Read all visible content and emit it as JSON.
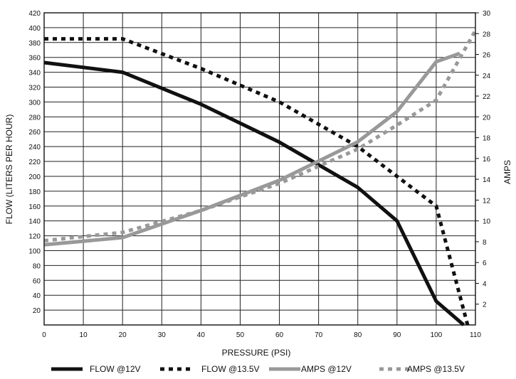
{
  "chart_data": {
    "type": "line",
    "xlabel": "PRESSURE (PSI)",
    "ylabel": "FLOW (LITERS PER HOUR)",
    "y2label": "AMPS",
    "xlim": [
      0,
      110
    ],
    "ylim": [
      0,
      420
    ],
    "y2lim": [
      0,
      30
    ],
    "x_ticks": [
      0,
      10,
      20,
      30,
      40,
      50,
      60,
      70,
      80,
      90,
      100,
      110
    ],
    "y_ticks": [
      20,
      40,
      60,
      80,
      100,
      120,
      140,
      160,
      180,
      200,
      220,
      240,
      260,
      280,
      300,
      320,
      340,
      360,
      380,
      400,
      420
    ],
    "y2_ticks": [
      2,
      4,
      6,
      8,
      10,
      12,
      14,
      16,
      18,
      20,
      22,
      24,
      26,
      28,
      30
    ],
    "grid": true,
    "legend_position": "bottom",
    "series": [
      {
        "name": "FLOW @12V",
        "axis": "left",
        "color": "#111111",
        "style": "solid",
        "points": [
          [
            0,
            353
          ],
          [
            20,
            340
          ],
          [
            40,
            297
          ],
          [
            60,
            246
          ],
          [
            80,
            185
          ],
          [
            90,
            140
          ],
          [
            100,
            32
          ],
          [
            107,
            0
          ]
        ]
      },
      {
        "name": "FLOW @13.5V",
        "axis": "left",
        "color": "#111111",
        "style": "dotted",
        "points": [
          [
            0,
            385
          ],
          [
            20,
            385
          ],
          [
            40,
            345
          ],
          [
            60,
            300
          ],
          [
            80,
            240
          ],
          [
            90,
            200
          ],
          [
            100,
            160
          ],
          [
            108,
            0
          ]
        ]
      },
      {
        "name": "AMPS @12V",
        "axis": "right",
        "color": "#999999",
        "style": "solid",
        "points": [
          [
            0,
            7.7
          ],
          [
            20,
            8.4
          ],
          [
            40,
            11.0
          ],
          [
            60,
            13.9
          ],
          [
            80,
            17.6
          ],
          [
            90,
            20.5
          ],
          [
            100,
            25.3
          ],
          [
            106,
            26.1
          ]
        ]
      },
      {
        "name": "AMPS @13.5V",
        "axis": "right",
        "color": "#999999",
        "style": "dotted",
        "points": [
          [
            0,
            8.1
          ],
          [
            20,
            8.9
          ],
          [
            40,
            11.0
          ],
          [
            60,
            13.6
          ],
          [
            80,
            16.9
          ],
          [
            90,
            19.2
          ],
          [
            100,
            21.6
          ],
          [
            110,
            28.3
          ]
        ]
      }
    ]
  }
}
